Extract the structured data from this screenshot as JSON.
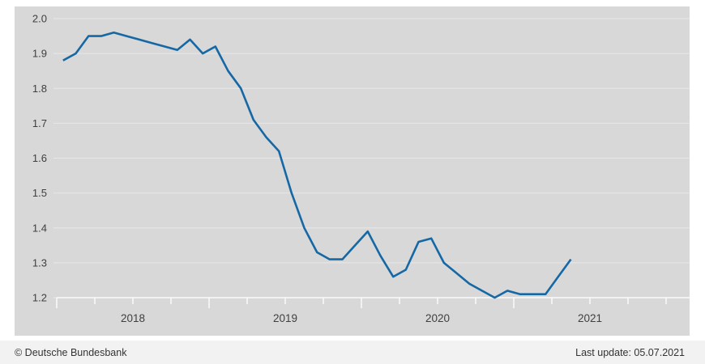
{
  "chart_data": {
    "type": "line",
    "title": "",
    "xlabel": "",
    "ylabel": "",
    "x": [
      "2018-01",
      "2018-02",
      "2018-03",
      "2018-04",
      "2018-05",
      "2018-06",
      "2018-07",
      "2018-08",
      "2018-09",
      "2018-10",
      "2018-11",
      "2018-12",
      "2019-01",
      "2019-02",
      "2019-03",
      "2019-04",
      "2019-05",
      "2019-06",
      "2019-07",
      "2019-08",
      "2019-09",
      "2019-10",
      "2019-11",
      "2019-12",
      "2020-01",
      "2020-02",
      "2020-03",
      "2020-04",
      "2020-05",
      "2020-06",
      "2020-07",
      "2020-08",
      "2020-09",
      "2020-10",
      "2020-11",
      "2020-12",
      "2021-01",
      "2021-02",
      "2021-03",
      "2021-04",
      "2021-05"
    ],
    "values": [
      1.88,
      1.9,
      1.95,
      1.95,
      1.96,
      1.95,
      1.94,
      1.93,
      1.92,
      1.91,
      1.94,
      1.9,
      1.92,
      1.85,
      1.8,
      1.71,
      1.66,
      1.62,
      1.5,
      1.4,
      1.33,
      1.31,
      1.31,
      1.35,
      1.39,
      1.32,
      1.26,
      1.28,
      1.36,
      1.37,
      1.3,
      1.27,
      1.24,
      1.22,
      1.2,
      1.22,
      1.21,
      1.21,
      1.21,
      1.26,
      1.31
    ],
    "ylim": [
      1.2,
      2.0
    ],
    "ytick_step": 0.1,
    "ytick_labels": [
      "2.0",
      "1.9",
      "1.8",
      "1.7",
      "1.6",
      "1.5",
      "1.4",
      "1.3",
      "1.2"
    ],
    "xtick_years": [
      "2018",
      "2019",
      "2020",
      "2021"
    ],
    "grid": true,
    "legend": "none"
  },
  "footer": {
    "copyright": "© Deutsche Bundesbank",
    "last_update": "Last update: 05.07.2021"
  },
  "colors": {
    "line": "#1668a5",
    "panel_bg": "#d8d8d8",
    "gridline": "#e7e7e7",
    "axis": "#fafafa",
    "tick_text": "#3f3f3f",
    "footer_bg": "#f2f2f2",
    "footer_text": "#333333"
  }
}
